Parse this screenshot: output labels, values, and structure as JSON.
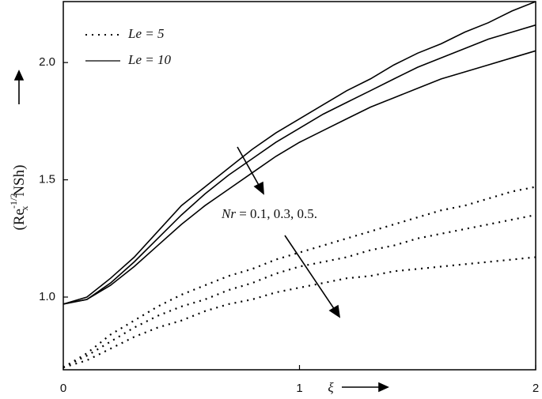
{
  "chart_data": {
    "type": "line",
    "x": [
      0,
      0.1,
      0.2,
      0.3,
      0.4,
      0.5,
      0.6,
      0.7,
      0.8,
      0.9,
      1.0,
      1.1,
      1.2,
      1.3,
      1.4,
      1.5,
      1.6,
      1.7,
      1.8,
      1.9,
      2.0
    ],
    "series": [
      {
        "name": "Le = 5",
        "color": "#000000",
        "dash": "dotted",
        "curves": [
          [
            0.7,
            0.76,
            0.84,
            0.9,
            0.96,
            1.01,
            1.05,
            1.09,
            1.12,
            1.16,
            1.19,
            1.22,
            1.25,
            1.28,
            1.31,
            1.34,
            1.37,
            1.39,
            1.42,
            1.45,
            1.47
          ],
          [
            0.7,
            0.75,
            0.81,
            0.87,
            0.92,
            0.96,
            0.99,
            1.03,
            1.06,
            1.1,
            1.13,
            1.15,
            1.17,
            1.2,
            1.22,
            1.25,
            1.27,
            1.29,
            1.31,
            1.33,
            1.35
          ],
          [
            0.7,
            0.73,
            0.78,
            0.83,
            0.87,
            0.9,
            0.94,
            0.97,
            0.99,
            1.02,
            1.04,
            1.06,
            1.08,
            1.09,
            1.11,
            1.12,
            1.13,
            1.14,
            1.15,
            1.16,
            1.17
          ]
        ]
      },
      {
        "name": "Le = 10",
        "color": "#000000",
        "dash": "solid",
        "curves": [
          [
            0.97,
            1.0,
            1.08,
            1.17,
            1.28,
            1.39,
            1.47,
            1.55,
            1.63,
            1.7,
            1.76,
            1.82,
            1.88,
            1.93,
            1.99,
            2.04,
            2.08,
            2.13,
            2.17,
            2.22,
            2.26
          ],
          [
            0.97,
            0.99,
            1.06,
            1.15,
            1.25,
            1.35,
            1.44,
            1.52,
            1.59,
            1.66,
            1.72,
            1.78,
            1.83,
            1.88,
            1.93,
            1.98,
            2.02,
            2.06,
            2.1,
            2.13,
            2.16
          ],
          [
            0.97,
            0.99,
            1.05,
            1.13,
            1.22,
            1.31,
            1.39,
            1.46,
            1.53,
            1.6,
            1.66,
            1.71,
            1.76,
            1.81,
            1.85,
            1.89,
            1.93,
            1.96,
            1.99,
            2.02,
            2.05
          ]
        ]
      }
    ],
    "xlim": [
      0,
      2
    ],
    "xticks": [
      0,
      1,
      2
    ],
    "ylim": [
      0.69,
      2.26
    ],
    "yticks": [
      {
        "value": 1.0,
        "label": "1.0"
      },
      {
        "value": 1.5,
        "label": "1.5"
      },
      {
        "value": 2.0,
        "label": "2.0"
      }
    ],
    "xlabel": "ξ",
    "ylabel": {
      "parts": [
        "(Re",
        "-1/2",
        "x",
        "NSh)"
      ]
    },
    "annotation": {
      "parts": [
        "Nr",
        "= 0.1, 0.3, 0.5."
      ]
    },
    "legend": "top-left"
  }
}
